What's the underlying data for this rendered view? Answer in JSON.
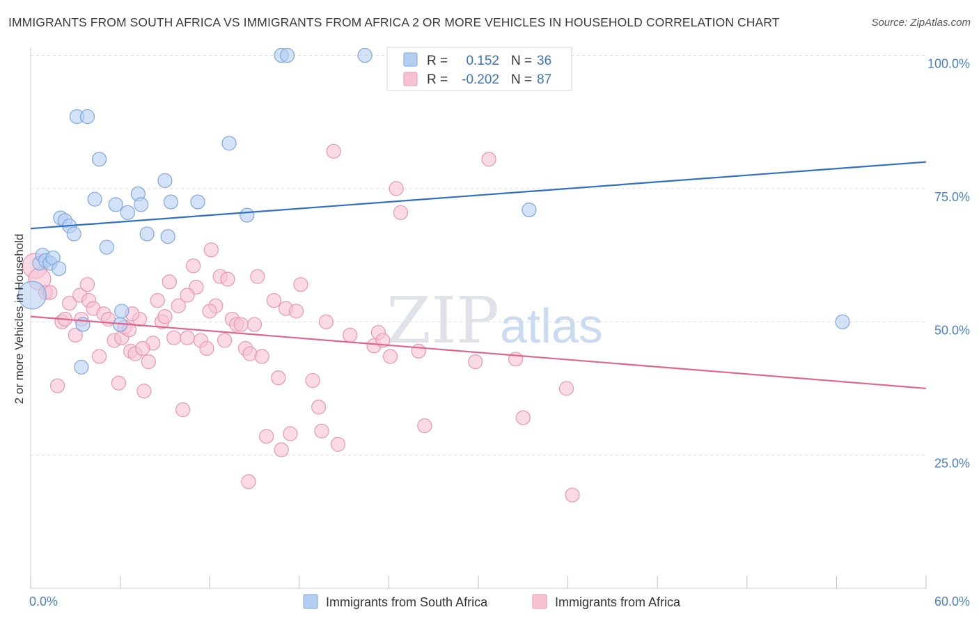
{
  "header": {
    "title": "IMMIGRANTS FROM SOUTH AFRICA VS IMMIGRANTS FROM AFRICA 2 OR MORE VEHICLES IN HOUSEHOLD CORRELATION CHART",
    "source": "Source: ZipAtlas.com"
  },
  "watermark": {
    "zip": "ZIP",
    "atlas": "atlas"
  },
  "colors": {
    "blue_fill": "#b5cff2",
    "blue_stroke": "#7ea6de",
    "blue_line": "#2f6fc8",
    "pink_fill": "#f7c3d3",
    "pink_stroke": "#e995b1",
    "pink_line": "#e0648f",
    "grid": "#dcdcdc",
    "axis_text": "#4a7fc9"
  },
  "legend": {
    "series1": {
      "r_label": "R =",
      "r_value": "0.152",
      "n_label": "N =",
      "n_value": "36"
    },
    "series2": {
      "r_label": "R =",
      "r_value": "-0.202",
      "n_label": "N =",
      "n_value": "87"
    }
  },
  "chart_data": {
    "type": "scatter",
    "xlabel": "",
    "ylabel": "2 or more Vehicles in Household",
    "xlim": [
      0,
      60
    ],
    "ylim": [
      0,
      100
    ],
    "x_tick_labels": [
      "0.0%",
      "60.0%"
    ],
    "y_ticks": [
      25,
      50,
      75,
      100
    ],
    "y_tick_labels": [
      "25.0%",
      "50.0%",
      "75.0%",
      "100.0%"
    ],
    "grid": true,
    "legend_position": "top-center",
    "series": [
      {
        "name": "Immigrants from South Africa",
        "color": "#b5cff2",
        "trend": {
          "x": [
            0,
            60
          ],
          "y": [
            67.5,
            80.0
          ]
        },
        "points": [
          [
            0.1,
            55.0,
            20
          ],
          [
            0.6,
            61.0,
            10
          ],
          [
            0.8,
            62.5,
            10
          ],
          [
            1.0,
            61.5,
            10
          ],
          [
            1.3,
            61.0,
            10
          ],
          [
            1.5,
            62.0,
            10
          ],
          [
            1.9,
            60.0,
            10
          ],
          [
            2.0,
            69.5,
            10
          ],
          [
            2.3,
            69.0,
            10
          ],
          [
            2.6,
            68.0,
            10
          ],
          [
            2.9,
            66.5,
            10
          ],
          [
            3.1,
            88.5,
            10
          ],
          [
            3.8,
            88.5,
            10
          ],
          [
            3.5,
            49.5,
            10
          ],
          [
            3.4,
            41.5,
            10
          ],
          [
            4.3,
            73.0,
            10
          ],
          [
            4.6,
            80.5,
            10
          ],
          [
            5.1,
            64.0,
            10
          ],
          [
            5.7,
            72.0,
            10
          ],
          [
            6.0,
            49.5,
            10
          ],
          [
            6.1,
            52.0,
            10
          ],
          [
            6.5,
            70.5,
            10
          ],
          [
            7.2,
            74.0,
            10
          ],
          [
            7.4,
            72.0,
            10
          ],
          [
            7.8,
            66.5,
            10
          ],
          [
            9.0,
            76.5,
            10
          ],
          [
            9.2,
            66.0,
            10
          ],
          [
            9.4,
            72.5,
            10
          ],
          [
            11.2,
            72.5,
            10
          ],
          [
            13.3,
            83.5,
            10
          ],
          [
            14.5,
            70.0,
            10
          ],
          [
            16.8,
            100.0,
            10
          ],
          [
            17.2,
            100.0,
            10
          ],
          [
            22.4,
            100.0,
            10
          ],
          [
            33.4,
            71.0,
            10
          ],
          [
            54.4,
            50.0,
            10
          ]
        ]
      },
      {
        "name": "Immigrants from Africa",
        "color": "#f7c3d3",
        "trend": {
          "x": [
            0,
            60
          ],
          "y": [
            51.0,
            37.5
          ]
        },
        "points": [
          [
            0.3,
            60.5,
            18
          ],
          [
            0.6,
            58.0,
            16
          ],
          [
            1.0,
            55.5,
            10
          ],
          [
            1.3,
            55.5,
            10
          ],
          [
            1.8,
            38.0,
            10
          ],
          [
            2.1,
            50.0,
            10
          ],
          [
            2.3,
            50.5,
            10
          ],
          [
            2.6,
            53.5,
            10
          ],
          [
            3.0,
            47.5,
            10
          ],
          [
            3.3,
            55.0,
            10
          ],
          [
            3.8,
            57.0,
            10
          ],
          [
            3.9,
            54.0,
            10
          ],
          [
            4.2,
            52.5,
            10
          ],
          [
            4.6,
            43.5,
            10
          ],
          [
            4.9,
            51.5,
            10
          ],
          [
            5.2,
            50.5,
            10
          ],
          [
            5.6,
            46.5,
            10
          ],
          [
            5.9,
            38.5,
            10
          ],
          [
            6.1,
            47.0,
            10
          ],
          [
            6.3,
            49.0,
            10
          ],
          [
            6.6,
            48.5,
            10
          ],
          [
            6.7,
            44.5,
            10
          ],
          [
            7.0,
            44.0,
            10
          ],
          [
            7.3,
            50.5,
            10
          ],
          [
            7.6,
            37.0,
            10
          ],
          [
            7.9,
            42.5,
            10
          ],
          [
            8.2,
            46.0,
            10
          ],
          [
            8.5,
            54.0,
            10
          ],
          [
            8.8,
            50.0,
            10
          ],
          [
            9.0,
            51.0,
            10
          ],
          [
            9.3,
            57.5,
            10
          ],
          [
            9.6,
            47.0,
            10
          ],
          [
            9.9,
            53.0,
            10
          ],
          [
            10.2,
            33.5,
            10
          ],
          [
            10.5,
            47.0,
            10
          ],
          [
            10.9,
            60.5,
            10
          ],
          [
            11.1,
            56.5,
            10
          ],
          [
            11.4,
            46.5,
            10
          ],
          [
            11.8,
            45.0,
            10
          ],
          [
            12.1,
            63.5,
            10
          ],
          [
            12.4,
            53.0,
            10
          ],
          [
            12.7,
            58.5,
            10
          ],
          [
            13.0,
            46.5,
            10
          ],
          [
            13.2,
            58.0,
            10
          ],
          [
            13.5,
            50.5,
            10
          ],
          [
            13.8,
            49.5,
            10
          ],
          [
            14.1,
            49.5,
            10
          ],
          [
            14.4,
            45.0,
            10
          ],
          [
            14.7,
            44.0,
            10
          ],
          [
            15.0,
            49.5,
            10
          ],
          [
            15.2,
            58.5,
            10
          ],
          [
            15.5,
            43.5,
            10
          ],
          [
            15.8,
            28.5,
            10
          ],
          [
            16.3,
            54.0,
            10
          ],
          [
            16.6,
            39.5,
            10
          ],
          [
            16.8,
            26.0,
            10
          ],
          [
            17.1,
            52.5,
            10
          ],
          [
            17.4,
            29.0,
            10
          ],
          [
            17.8,
            52.0,
            10
          ],
          [
            18.1,
            57.0,
            10
          ],
          [
            18.9,
            39.0,
            10
          ],
          [
            19.3,
            34.0,
            10
          ],
          [
            19.5,
            29.5,
            10
          ],
          [
            19.8,
            50.0,
            10
          ],
          [
            20.3,
            82.0,
            10
          ],
          [
            20.6,
            27.0,
            10
          ],
          [
            21.4,
            47.5,
            10
          ],
          [
            23.0,
            45.5,
            10
          ],
          [
            23.3,
            48.0,
            10
          ],
          [
            23.6,
            46.5,
            10
          ],
          [
            24.1,
            43.5,
            10
          ],
          [
            24.5,
            75.0,
            10
          ],
          [
            24.8,
            70.5,
            10
          ],
          [
            26.0,
            44.5,
            10
          ],
          [
            26.4,
            30.5,
            10
          ],
          [
            29.8,
            42.5,
            10
          ],
          [
            30.7,
            80.5,
            10
          ],
          [
            32.5,
            43.0,
            10
          ],
          [
            33.0,
            32.0,
            10
          ],
          [
            35.9,
            37.5,
            10
          ],
          [
            36.3,
            17.5,
            10
          ],
          [
            7.5,
            45.0,
            10
          ],
          [
            14.6,
            20.0,
            10
          ],
          [
            10.5,
            55.0,
            10
          ],
          [
            12.0,
            52.0,
            10
          ],
          [
            6.8,
            51.5,
            10
          ],
          [
            3.4,
            50.5,
            10
          ]
        ]
      }
    ]
  },
  "bottom_legend": {
    "items": [
      {
        "label": "Immigrants from South Africa"
      },
      {
        "label": "Immigrants from Africa"
      }
    ]
  }
}
